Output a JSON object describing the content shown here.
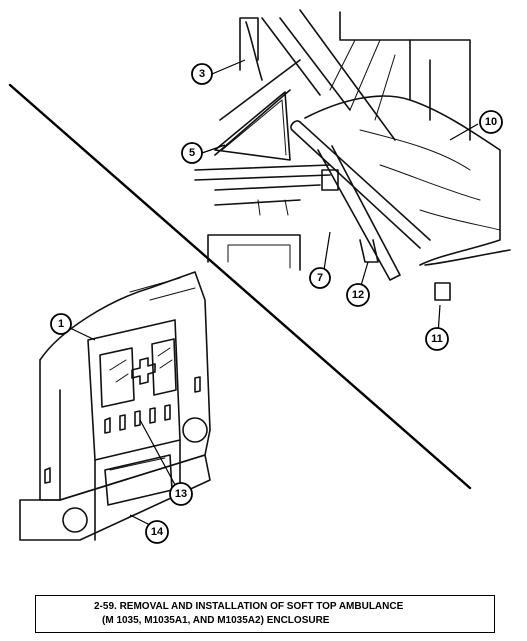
{
  "caption": {
    "line1": "2-59. REMOVAL AND INSTALLATION OF SOFT TOP AMBULANCE",
    "line2": "(M 1035, M1035A1, AND M1035A2) ENCLOSURE"
  },
  "callouts": [
    {
      "id": "c1",
      "label": "1"
    },
    {
      "id": "c3",
      "label": "3"
    },
    {
      "id": "c5",
      "label": "5"
    },
    {
      "id": "c7",
      "label": "7"
    },
    {
      "id": "c10",
      "label": "10"
    },
    {
      "id": "c11",
      "label": "11"
    },
    {
      "id": "c12",
      "label": "12"
    },
    {
      "id": "c13",
      "label": "13"
    },
    {
      "id": "c14",
      "label": "14"
    }
  ]
}
